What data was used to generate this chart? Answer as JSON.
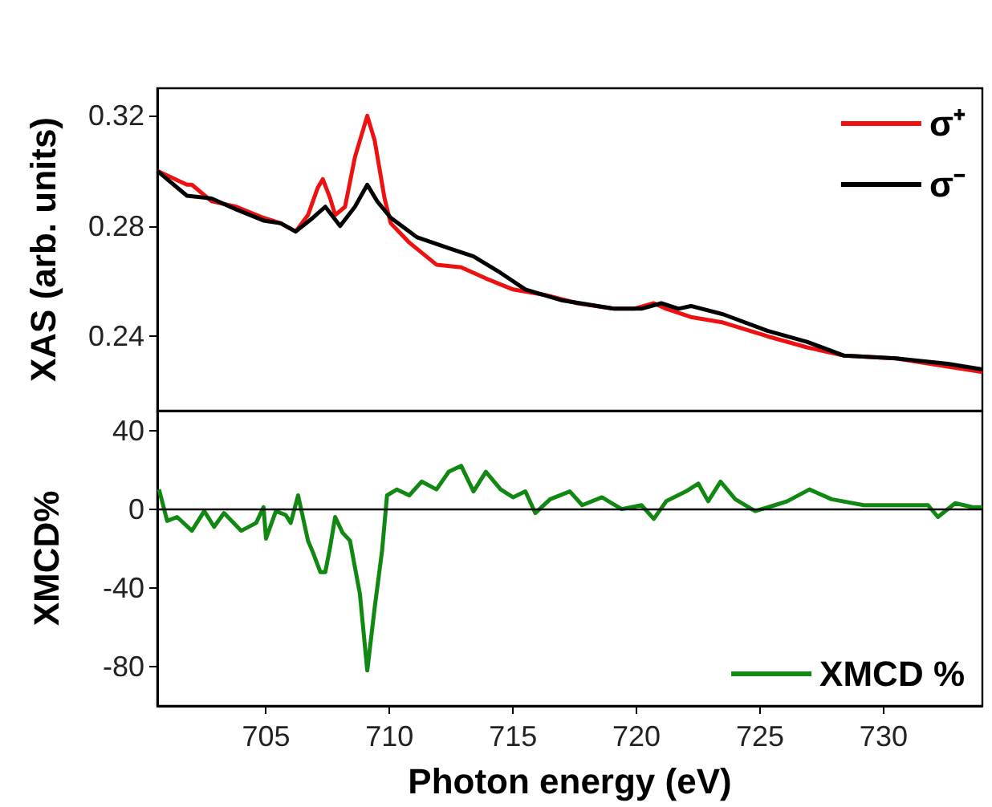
{
  "chart_data": [
    {
      "type": "line",
      "ylabel": "XAS (arb. units)",
      "xlim": [
        700.6,
        734
      ],
      "xticks": [
        705,
        710,
        715,
        720,
        725,
        730
      ],
      "ylim": [
        0.213,
        0.33
      ],
      "yticks": [
        0.24,
        0.28,
        0.32
      ],
      "tick_labels": "y",
      "legend": "top right",
      "series": [
        {
          "name": "σ⁺",
          "color": "#ee1111",
          "x": [
            700.6,
            701.8,
            702.0,
            702.8,
            703.8,
            704.9,
            705.6,
            706.2,
            706.7,
            707.1,
            707.3,
            707.6,
            707.8,
            708.2,
            708.6,
            709.1,
            709.4,
            709.8,
            710.05,
            710.8,
            711.9,
            712.9,
            713.9,
            715.0,
            716.3,
            717.6,
            719.1,
            719.9,
            720.7,
            721.2,
            722.2,
            723.5,
            725.3,
            726.9,
            728.4,
            730.5,
            732.6,
            734.0
          ],
          "values": [
            0.3,
            0.295,
            0.295,
            0.289,
            0.287,
            0.283,
            0.281,
            0.278,
            0.284,
            0.294,
            0.297,
            0.29,
            0.284,
            0.287,
            0.305,
            0.32,
            0.311,
            0.29,
            0.281,
            0.274,
            0.266,
            0.265,
            0.261,
            0.257,
            0.255,
            0.252,
            0.25,
            0.25,
            0.252,
            0.25,
            0.247,
            0.245,
            0.24,
            0.236,
            0.233,
            0.232,
            0.229,
            0.227
          ]
        },
        {
          "name": "σ⁻",
          "color": "#000000",
          "x": [
            700.6,
            701.8,
            702.8,
            703.8,
            704.9,
            705.6,
            706.2,
            706.9,
            707.4,
            708.0,
            708.6,
            709.1,
            709.5,
            710.05,
            711.1,
            712.4,
            713.4,
            714.5,
            715.5,
            717.0,
            719.1,
            720.2,
            721.0,
            721.7,
            722.2,
            723.5,
            725.3,
            726.9,
            728.4,
            730.5,
            732.6,
            734.0
          ],
          "values": [
            0.3,
            0.291,
            0.29,
            0.286,
            0.282,
            0.281,
            0.278,
            0.283,
            0.287,
            0.28,
            0.287,
            0.295,
            0.289,
            0.283,
            0.276,
            0.272,
            0.269,
            0.263,
            0.257,
            0.253,
            0.25,
            0.25,
            0.252,
            0.25,
            0.251,
            0.248,
            0.242,
            0.238,
            0.233,
            0.232,
            0.23,
            0.228
          ]
        }
      ]
    },
    {
      "type": "line",
      "xlabel": "Photon energy (eV)",
      "ylabel": "XMCD%",
      "xlim": [
        700.6,
        734
      ],
      "xticks": [
        705,
        710,
        715,
        720,
        725,
        730
      ],
      "ylim": [
        -100,
        50
      ],
      "yticks": [
        -80,
        -40,
        0,
        40
      ],
      "legend": "bottom right",
      "ref_lines": [
        {
          "axis": "y",
          "value": 0,
          "color": "#000000"
        }
      ],
      "series": [
        {
          "name": "XMCD %",
          "color": "#118811",
          "x": [
            700.67,
            701.0,
            701.4,
            702.0,
            702.5,
            702.9,
            703.3,
            704.0,
            704.6,
            704.9,
            705.0,
            705.4,
            705.8,
            706.0,
            706.3,
            706.7,
            706.9,
            707.2,
            707.4,
            707.6,
            707.8,
            708.1,
            708.4,
            708.8,
            709.1,
            709.4,
            709.7,
            709.9,
            710.3,
            710.8,
            711.3,
            711.9,
            712.4,
            712.9,
            713.4,
            713.9,
            714.5,
            715.0,
            715.5,
            715.9,
            716.5,
            717.3,
            717.8,
            718.6,
            719.4,
            720.2,
            720.7,
            721.2,
            722.0,
            722.5,
            722.9,
            723.4,
            724.0,
            724.8,
            725.6,
            726.1,
            727.0,
            727.9,
            729.2,
            730.5,
            731.8,
            732.2,
            732.9,
            733.6,
            734.0
          ],
          "values": [
            10,
            -6,
            -4,
            -11,
            -1,
            -9,
            -2,
            -11,
            -7,
            1,
            -15,
            -1,
            -3,
            -7,
            7,
            -16,
            -22,
            -32,
            -32,
            -19,
            -4,
            -12,
            -16,
            -43,
            -82,
            -50,
            -21,
            7,
            10,
            7,
            14,
            10,
            19,
            22,
            9,
            19,
            10,
            6,
            9,
            -2,
            5,
            9,
            2,
            6,
            0,
            2,
            -5,
            4,
            9,
            13,
            4,
            14,
            5,
            -1,
            2,
            4,
            10,
            5,
            2,
            2,
            2,
            -4,
            3,
            1,
            1
          ]
        }
      ]
    }
  ]
}
